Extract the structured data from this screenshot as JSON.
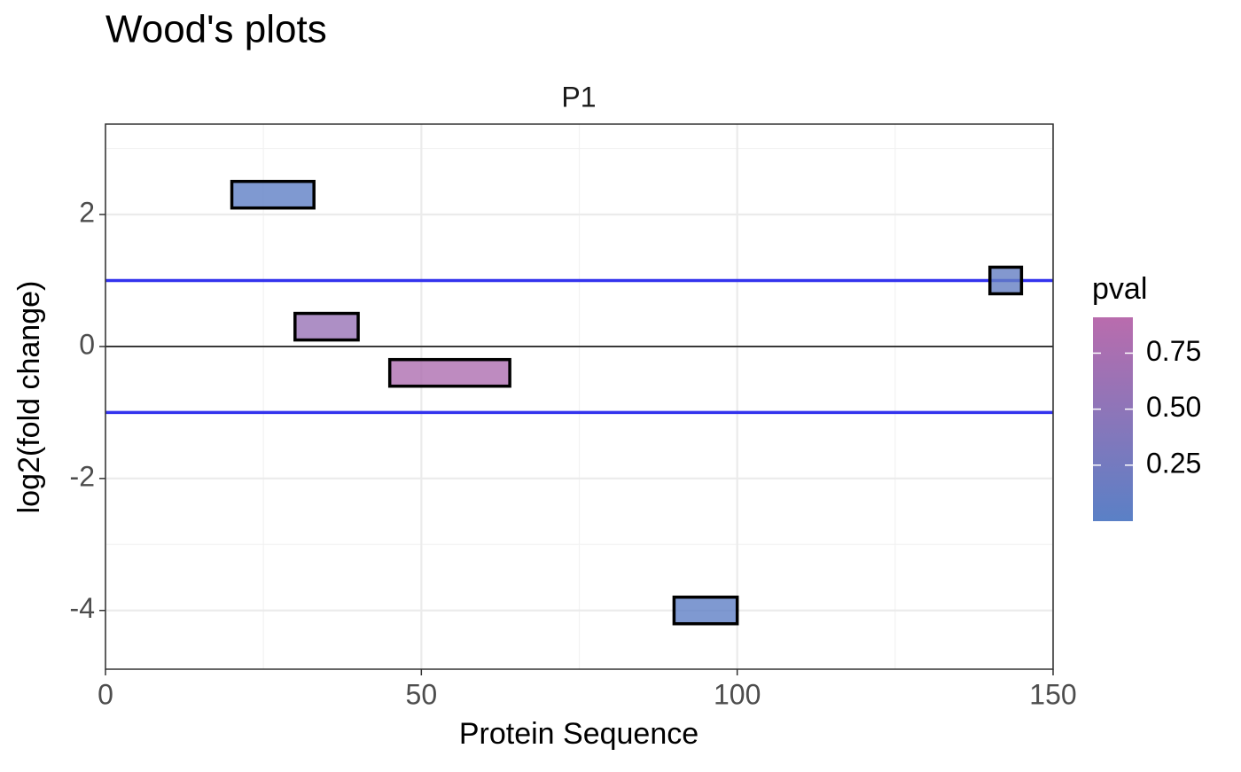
{
  "chart_data": {
    "type": "woods",
    "title": "Wood's plots",
    "facet": "P1",
    "x_label": "Protein Sequence",
    "y_label": "log2(fold change)",
    "start": [
      20,
      30,
      45,
      90,
      140
    ],
    "end": [
      33,
      40,
      64,
      100,
      145
    ],
    "values": [
      2.3,
      0.3,
      -0.4,
      -4.0,
      1.0
    ],
    "pval": [
      0.05,
      0.6,
      0.8,
      0.05,
      0.1
    ],
    "xlim": [
      0,
      150
    ],
    "xticks": [
      0,
      50,
      100,
      150
    ],
    "xminor": [
      25,
      75,
      125
    ],
    "ylim": [
      -4.89,
      3.37
    ],
    "yticks": [
      -4,
      -2,
      0,
      2
    ],
    "yminor": [
      -3,
      -1,
      1,
      3
    ],
    "thresholds": [
      -1,
      1
    ],
    "threshold_color": "#3333ee",
    "zero_line": 0,
    "grid": true,
    "legend_title": "pval",
    "clim": [
      0,
      0.91
    ],
    "cticks": [
      0.25,
      {
        "value": 0.5,
        "label": "0.50"
      },
      0.75
    ],
    "color_low": "#5a80c6",
    "color_high": "#b96cad"
  }
}
